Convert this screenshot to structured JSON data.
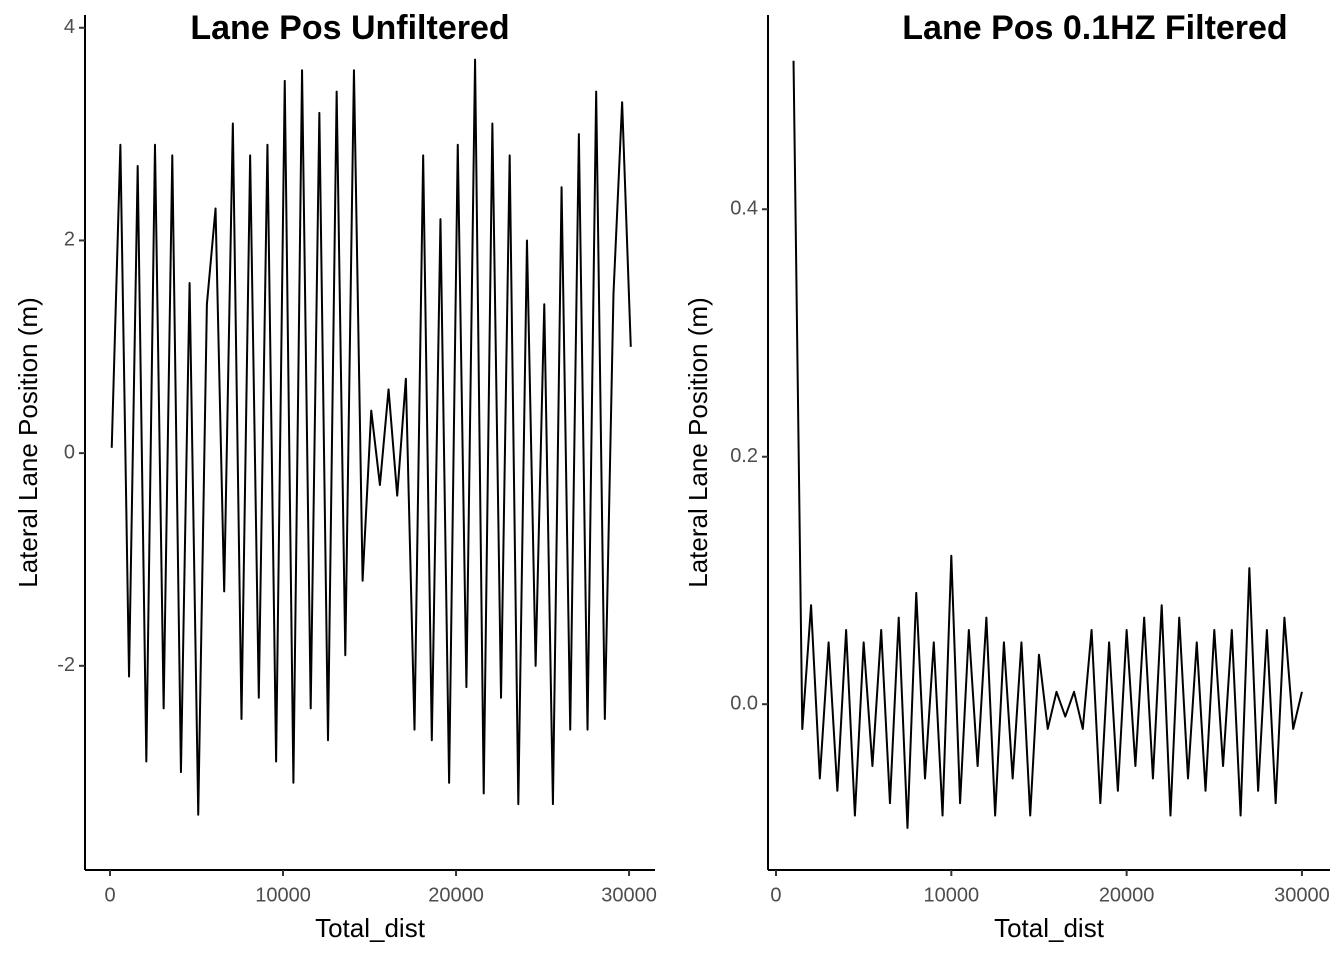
{
  "chart_data": [
    {
      "type": "line",
      "title": "Lane Pos Unfiltered",
      "x_label": "Total_dist",
      "y_label": "Lateral Lane Position (m)",
      "color": "#000000",
      "x": [
        100,
        600,
        1100,
        1600,
        2100,
        2600,
        3100,
        3600,
        4100,
        4600,
        5100,
        5600,
        6100,
        6600,
        7100,
        7600,
        8100,
        8600,
        9100,
        9600,
        10100,
        10600,
        11100,
        11600,
        12100,
        12600,
        13100,
        13600,
        14100,
        14600,
        15100,
        15600,
        16100,
        16600,
        17100,
        17600,
        18100,
        18600,
        19100,
        19600,
        20100,
        20600,
        21100,
        21600,
        22100,
        22600,
        23100,
        23600,
        24100,
        24600,
        25100,
        25600,
        26100,
        26600,
        27100,
        27600,
        28100,
        28600,
        29100,
        29600,
        30100
      ],
      "values": [
        0.05,
        2.9,
        -2.1,
        2.7,
        -2.9,
        2.9,
        -2.4,
        2.8,
        -3.0,
        1.6,
        -3.4,
        1.4,
        2.3,
        -1.3,
        3.1,
        -2.5,
        2.8,
        -2.3,
        2.9,
        -2.9,
        3.5,
        -3.1,
        3.6,
        -2.4,
        3.2,
        -2.7,
        3.4,
        -1.9,
        3.6,
        -1.2,
        0.4,
        -0.3,
        0.6,
        -0.4,
        0.7,
        -2.6,
        2.8,
        -2.7,
        2.2,
        -3.1,
        2.9,
        -2.2,
        3.7,
        -3.2,
        3.1,
        -2.3,
        2.8,
        -3.3,
        2.0,
        -2.0,
        1.4,
        -3.3,
        2.5,
        -2.6,
        3.0,
        -2.6,
        3.4,
        -2.5,
        1.5,
        3.3,
        1.0
      ],
      "xlim": [
        -1445,
        31500
      ],
      "ylim": [
        -3.92,
        4.12
      ],
      "xticks": [
        0,
        10000,
        20000,
        30000
      ],
      "yticks": [
        -2,
        0,
        2,
        4
      ]
    },
    {
      "type": "line",
      "title": "Lane Pos 0.1HZ Filtered",
      "x_label": "Total_dist",
      "y_label": "Lateral Lane Position (m)",
      "color": "#000000",
      "x": [
        1000,
        1500,
        2000,
        2500,
        3000,
        3500,
        4000,
        4500,
        5000,
        5500,
        6000,
        6500,
        7000,
        7500,
        8000,
        8500,
        9000,
        9500,
        10000,
        10500,
        11000,
        11500,
        12000,
        12500,
        13000,
        13500,
        14000,
        14500,
        15000,
        15500,
        16000,
        16500,
        17000,
        17500,
        18000,
        18500,
        19000,
        19500,
        20000,
        20500,
        21000,
        21500,
        22000,
        22500,
        23000,
        23500,
        24000,
        24500,
        25000,
        25500,
        26000,
        26500,
        27000,
        27500,
        28000,
        28500,
        29000,
        29500,
        30000
      ],
      "values": [
        0.52,
        -0.02,
        0.08,
        -0.06,
        0.05,
        -0.07,
        0.06,
        -0.09,
        0.05,
        -0.05,
        0.06,
        -0.08,
        0.07,
        -0.1,
        0.09,
        -0.06,
        0.05,
        -0.09,
        0.12,
        -0.08,
        0.06,
        -0.05,
        0.07,
        -0.09,
        0.05,
        -0.06,
        0.05,
        -0.09,
        0.04,
        -0.02,
        0.01,
        -0.01,
        0.01,
        -0.02,
        0.06,
        -0.08,
        0.05,
        -0.07,
        0.06,
        -0.05,
        0.07,
        -0.06,
        0.08,
        -0.09,
        0.07,
        -0.06,
        0.05,
        -0.07,
        0.06,
        -0.05,
        0.06,
        -0.09,
        0.11,
        -0.07,
        0.06,
        -0.08,
        0.07,
        -0.02,
        0.01
      ],
      "xlim": [
        -456,
        31600
      ],
      "ylim": [
        -0.134,
        0.557
      ],
      "xticks": [
        0,
        10000,
        20000,
        30000
      ],
      "yticks": [
        {
          "value": 0,
          "label": "0.0"
        },
        0.2,
        0.4
      ]
    }
  ]
}
